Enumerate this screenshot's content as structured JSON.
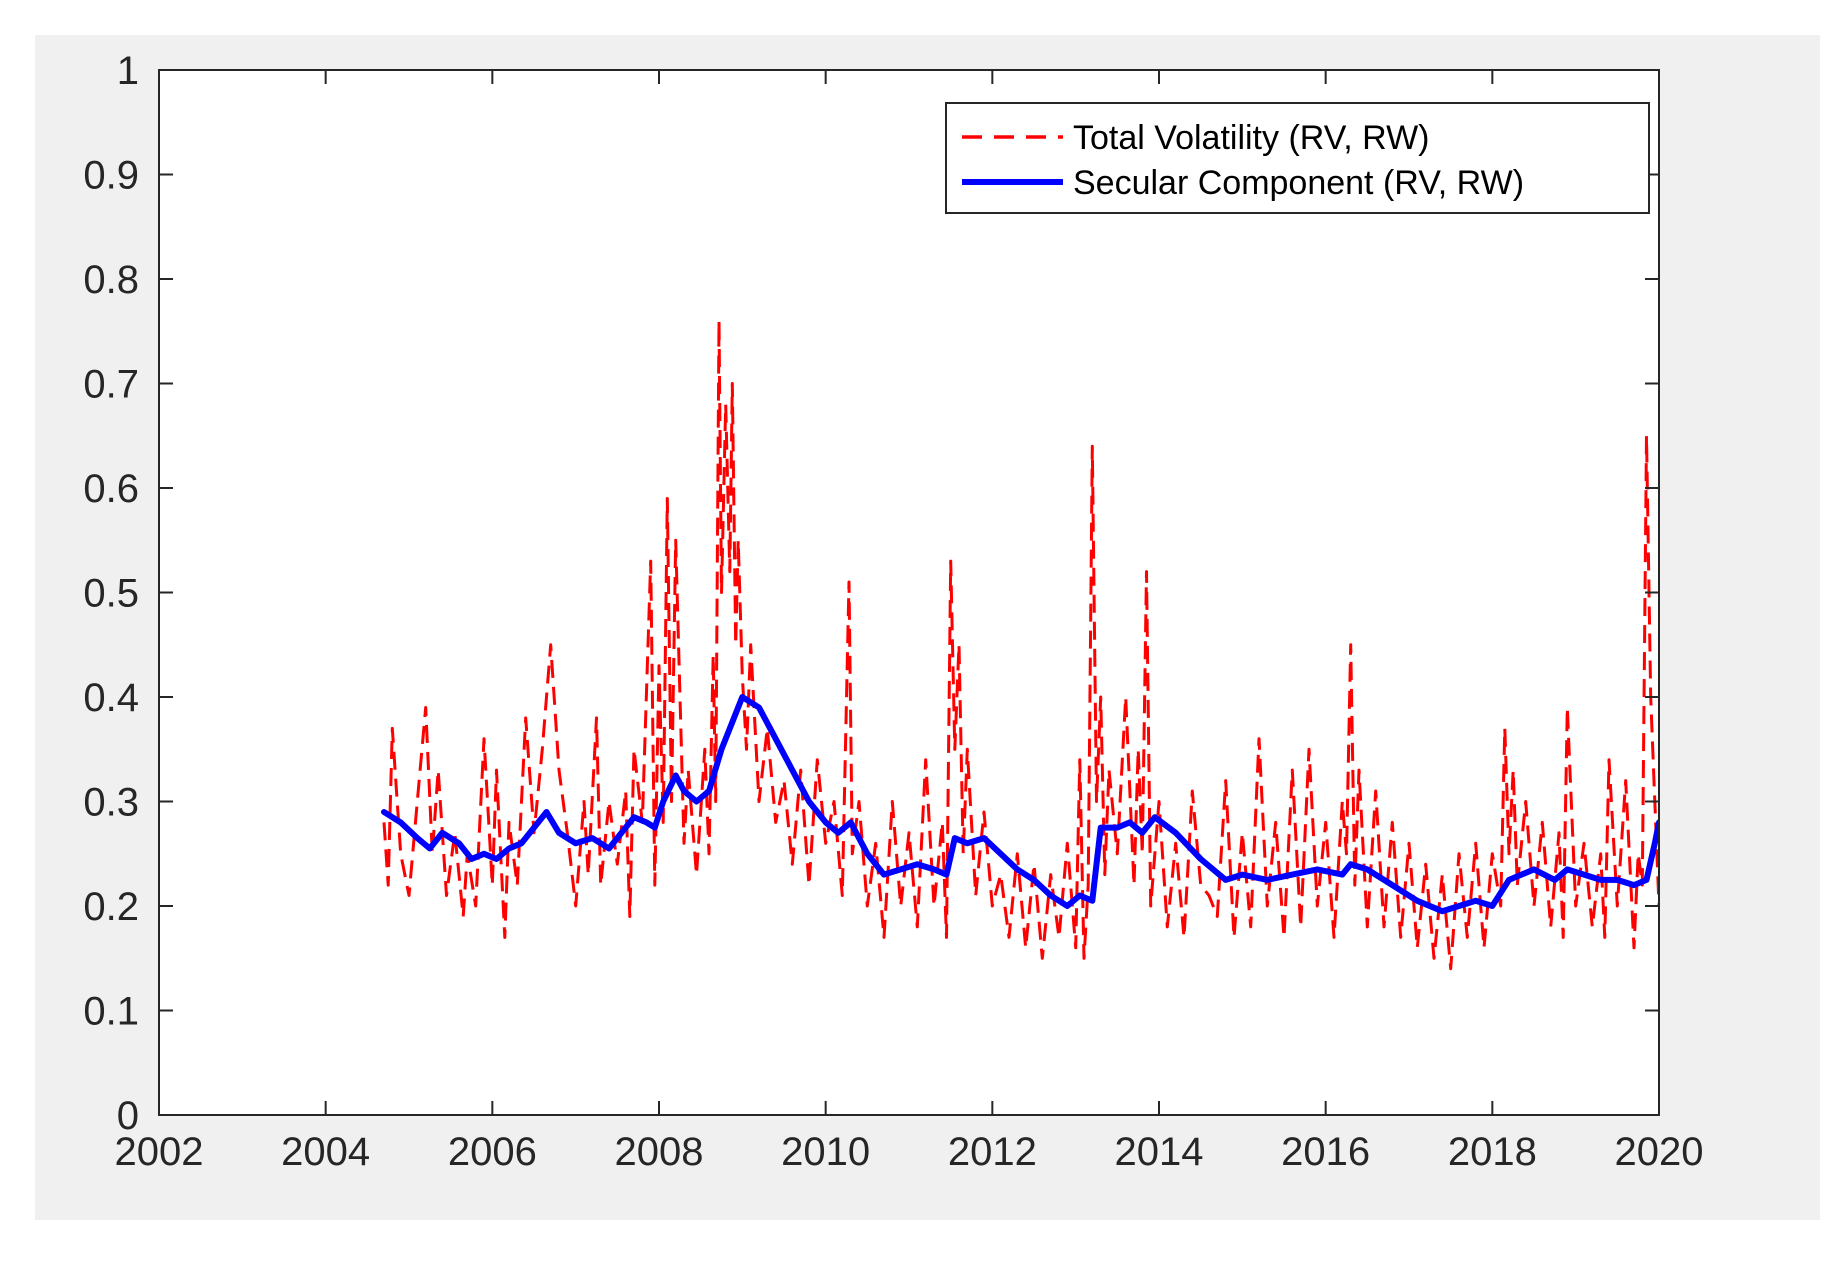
{
  "chart_data": {
    "type": "line",
    "title": "",
    "xlabel": "",
    "ylabel": "",
    "xlim": [
      2002,
      2020
    ],
    "ylim": [
      0,
      1
    ],
    "grid": false,
    "legend_position": "top-right",
    "x_ticks": [
      {
        "value": 2002,
        "label": "2002"
      },
      {
        "value": 2004,
        "label": "2004"
      },
      {
        "value": 2006,
        "label": "2006"
      },
      {
        "value": 2008,
        "label": "2008"
      },
      {
        "value": 2010,
        "label": "2010"
      },
      {
        "value": 2012,
        "label": "2012"
      },
      {
        "value": 2014,
        "label": "2014"
      },
      {
        "value": 2016,
        "label": "2016"
      },
      {
        "value": 2018,
        "label": "2018"
      },
      {
        "value": 2020,
        "label": "2020"
      }
    ],
    "y_ticks": [
      {
        "value": 0,
        "label": "0"
      },
      {
        "value": 0.1,
        "label": "0.1"
      },
      {
        "value": 0.2,
        "label": "0.2"
      },
      {
        "value": 0.3,
        "label": "0.3"
      },
      {
        "value": 0.4,
        "label": "0.4"
      },
      {
        "value": 0.5,
        "label": "0.5"
      },
      {
        "value": 0.6,
        "label": "0.6"
      },
      {
        "value": 0.7,
        "label": "0.7"
      },
      {
        "value": 0.8,
        "label": "0.8"
      },
      {
        "value": 0.9,
        "label": "0.9"
      },
      {
        "value": 1,
        "label": "1"
      }
    ],
    "series": [
      {
        "name": "Total Volatility (RV, RW)",
        "color": "#ff0000",
        "style": "dashed",
        "x": [
          2004.7,
          2004.75,
          2004.8,
          2004.9,
          2005.0,
          2005.1,
          2005.2,
          2005.28,
          2005.35,
          2005.45,
          2005.55,
          2005.65,
          2005.7,
          2005.8,
          2005.9,
          2006.0,
          2006.05,
          2006.15,
          2006.2,
          2006.3,
          2006.4,
          2006.5,
          2006.55,
          2006.6,
          2006.7,
          2006.8,
          2006.9,
          2007.0,
          2007.1,
          2007.15,
          2007.25,
          2007.3,
          2007.4,
          2007.5,
          2007.6,
          2007.65,
          2007.7,
          2007.8,
          2007.9,
          2007.95,
          2008.0,
          2008.05,
          2008.1,
          2008.15,
          2008.2,
          2008.3,
          2008.35,
          2008.45,
          2008.55,
          2008.6,
          2008.65,
          2008.68,
          2008.72,
          2008.75,
          2008.8,
          2008.85,
          2008.88,
          2008.92,
          2008.95,
          2009.0,
          2009.05,
          2009.1,
          2009.2,
          2009.3,
          2009.4,
          2009.5,
          2009.6,
          2009.7,
          2009.8,
          2009.9,
          2010.0,
          2010.1,
          2010.2,
          2010.28,
          2010.32,
          2010.4,
          2010.5,
          2010.6,
          2010.7,
          2010.8,
          2010.9,
          2011.0,
          2011.1,
          2011.2,
          2011.3,
          2011.4,
          2011.45,
          2011.5,
          2011.55,
          2011.6,
          2011.65,
          2011.7,
          2011.8,
          2011.9,
          2012.0,
          2012.1,
          2012.2,
          2012.3,
          2012.4,
          2012.5,
          2012.6,
          2012.7,
          2012.8,
          2012.9,
          2013.0,
          2013.05,
          2013.1,
          2013.15,
          2013.2,
          2013.25,
          2013.3,
          2013.35,
          2013.4,
          2013.5,
          2013.6,
          2013.7,
          2013.75,
          2013.8,
          2013.85,
          2013.9,
          2014.0,
          2014.1,
          2014.2,
          2014.3,
          2014.4,
          2014.5,
          2014.6,
          2014.7,
          2014.8,
          2014.9,
          2015.0,
          2015.1,
          2015.2,
          2015.3,
          2015.4,
          2015.5,
          2015.6,
          2015.7,
          2015.8,
          2015.9,
          2016.0,
          2016.1,
          2016.2,
          2016.25,
          2016.3,
          2016.35,
          2016.4,
          2016.5,
          2016.6,
          2016.7,
          2016.8,
          2016.9,
          2017.0,
          2017.1,
          2017.2,
          2017.3,
          2017.4,
          2017.5,
          2017.6,
          2017.7,
          2017.8,
          2017.9,
          2018.0,
          2018.1,
          2018.15,
          2018.2,
          2018.25,
          2018.3,
          2018.4,
          2018.5,
          2018.6,
          2018.7,
          2018.8,
          2018.85,
          2018.9,
          2019.0,
          2019.1,
          2019.2,
          2019.3,
          2019.35,
          2019.4,
          2019.5,
          2019.6,
          2019.7,
          2019.75,
          2019.8,
          2019.85,
          2019.9,
          2019.95,
          2020.0
        ],
        "y": [
          0.28,
          0.22,
          0.37,
          0.25,
          0.21,
          0.3,
          0.39,
          0.25,
          0.33,
          0.21,
          0.27,
          0.19,
          0.25,
          0.2,
          0.36,
          0.22,
          0.33,
          0.17,
          0.28,
          0.22,
          0.38,
          0.27,
          0.31,
          0.35,
          0.45,
          0.33,
          0.27,
          0.2,
          0.3,
          0.23,
          0.38,
          0.22,
          0.3,
          0.24,
          0.31,
          0.19,
          0.35,
          0.28,
          0.53,
          0.22,
          0.43,
          0.28,
          0.59,
          0.3,
          0.55,
          0.26,
          0.33,
          0.23,
          0.35,
          0.25,
          0.44,
          0.3,
          0.76,
          0.5,
          0.68,
          0.52,
          0.7,
          0.45,
          0.55,
          0.42,
          0.35,
          0.45,
          0.3,
          0.37,
          0.28,
          0.32,
          0.24,
          0.33,
          0.22,
          0.34,
          0.26,
          0.3,
          0.21,
          0.51,
          0.25,
          0.3,
          0.2,
          0.26,
          0.17,
          0.3,
          0.2,
          0.27,
          0.18,
          0.34,
          0.2,
          0.28,
          0.17,
          0.53,
          0.35,
          0.45,
          0.25,
          0.35,
          0.21,
          0.29,
          0.2,
          0.23,
          0.17,
          0.25,
          0.16,
          0.24,
          0.15,
          0.23,
          0.17,
          0.26,
          0.16,
          0.34,
          0.15,
          0.22,
          0.64,
          0.3,
          0.4,
          0.23,
          0.33,
          0.25,
          0.4,
          0.22,
          0.35,
          0.25,
          0.52,
          0.2,
          0.3,
          0.18,
          0.26,
          0.17,
          0.31,
          0.22,
          0.21,
          0.19,
          0.32,
          0.17,
          0.27,
          0.18,
          0.36,
          0.2,
          0.28,
          0.17,
          0.33,
          0.18,
          0.35,
          0.2,
          0.28,
          0.17,
          0.3,
          0.25,
          0.45,
          0.22,
          0.33,
          0.18,
          0.31,
          0.18,
          0.28,
          0.17,
          0.26,
          0.16,
          0.24,
          0.15,
          0.23,
          0.14,
          0.25,
          0.17,
          0.26,
          0.16,
          0.25,
          0.2,
          0.37,
          0.25,
          0.33,
          0.22,
          0.3,
          0.2,
          0.28,
          0.18,
          0.27,
          0.17,
          0.39,
          0.2,
          0.26,
          0.18,
          0.25,
          0.17,
          0.34,
          0.2,
          0.32,
          0.16,
          0.25,
          0.22,
          0.65,
          0.4,
          0.3,
          0.2
        ]
      },
      {
        "name": "Secular Component (RV, RW)",
        "color": "#0000ff",
        "style": "solid",
        "x": [
          2004.7,
          2004.9,
          2005.1,
          2005.25,
          2005.4,
          2005.6,
          2005.75,
          2005.9,
          2006.05,
          2006.2,
          2006.35,
          2006.5,
          2006.65,
          2006.8,
          2007.0,
          2007.2,
          2007.4,
          2007.55,
          2007.7,
          2007.85,
          2007.95,
          2008.05,
          2008.2,
          2008.3,
          2008.45,
          2008.6,
          2008.75,
          2008.9,
          2009.0,
          2009.2,
          2009.4,
          2009.6,
          2009.8,
          2010.0,
          2010.15,
          2010.3,
          2010.5,
          2010.7,
          2010.9,
          2011.1,
          2011.3,
          2011.45,
          2011.55,
          2011.7,
          2011.9,
          2012.1,
          2012.3,
          2012.5,
          2012.7,
          2012.9,
          2013.05,
          2013.2,
          2013.3,
          2013.5,
          2013.65,
          2013.8,
          2013.95,
          2014.2,
          2014.5,
          2014.8,
          2015.0,
          2015.3,
          2015.6,
          2015.9,
          2016.2,
          2016.3,
          2016.5,
          2016.8,
          2017.1,
          2017.4,
          2017.6,
          2017.8,
          2018.0,
          2018.2,
          2018.5,
          2018.75,
          2018.9,
          2019.1,
          2019.3,
          2019.5,
          2019.7,
          2019.85,
          2019.95,
          2020.0
        ],
        "y": [
          0.29,
          0.28,
          0.265,
          0.255,
          0.27,
          0.26,
          0.245,
          0.25,
          0.245,
          0.255,
          0.26,
          0.275,
          0.29,
          0.27,
          0.26,
          0.265,
          0.255,
          0.27,
          0.285,
          0.28,
          0.275,
          0.3,
          0.325,
          0.31,
          0.3,
          0.31,
          0.35,
          0.38,
          0.4,
          0.39,
          0.36,
          0.33,
          0.3,
          0.28,
          0.27,
          0.28,
          0.25,
          0.23,
          0.235,
          0.24,
          0.235,
          0.23,
          0.265,
          0.26,
          0.265,
          0.25,
          0.235,
          0.225,
          0.21,
          0.2,
          0.21,
          0.205,
          0.275,
          0.275,
          0.28,
          0.27,
          0.285,
          0.27,
          0.245,
          0.225,
          0.23,
          0.225,
          0.23,
          0.235,
          0.23,
          0.24,
          0.235,
          0.22,
          0.205,
          0.195,
          0.2,
          0.205,
          0.2,
          0.225,
          0.235,
          0.225,
          0.235,
          0.23,
          0.225,
          0.225,
          0.22,
          0.225,
          0.26,
          0.28
        ]
      }
    ]
  }
}
